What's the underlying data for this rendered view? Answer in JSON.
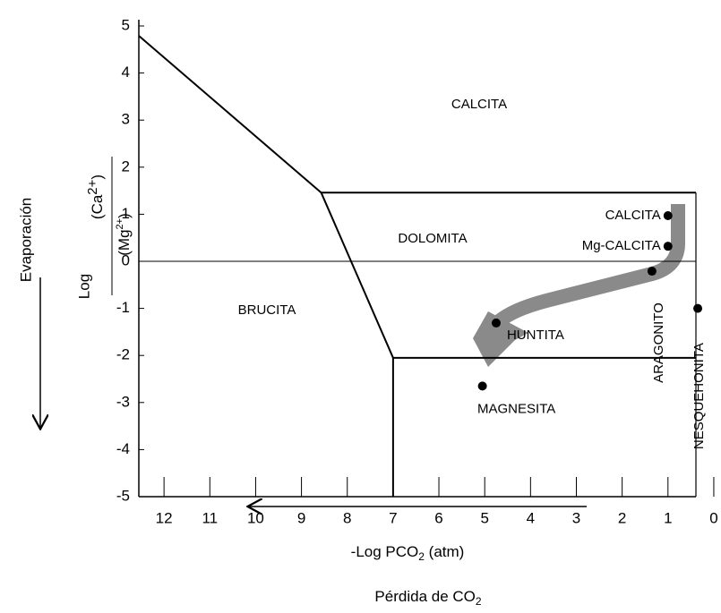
{
  "chart_data": {
    "type": "phase-diagram",
    "xlabel": {
      "main": "-Log PCO",
      "sub": "2",
      "rest": " (atm)"
    },
    "xnote": {
      "main": "Pérdida de CO",
      "sub": "2"
    },
    "ynote": "Evaporación",
    "ylabel": {
      "log": "Log",
      "num": {
        "open": "(Ca",
        "sup": "2+",
        "close": ")"
      },
      "den": {
        "open": "(Mg",
        "sup": "2+",
        "close": ")"
      }
    },
    "xlim": [
      12.55,
      0.39
    ],
    "ylim": [
      -5,
      5
    ],
    "xticks": [
      12,
      11,
      10,
      9,
      8,
      7,
      6,
      5,
      4,
      3,
      2,
      1,
      0
    ],
    "yticks": [
      5,
      4,
      3,
      2,
      1,
      0,
      -1,
      -2,
      -3,
      -4,
      -5
    ],
    "boundaries": [
      {
        "x": [
          12.55,
          8.57,
          0.39
        ],
        "y": [
          4.79,
          1.46,
          1.46
        ],
        "style": "thick"
      },
      {
        "x": [
          8.57,
          7.0,
          0.39
        ],
        "y": [
          1.46,
          -2.05,
          -2.05
        ],
        "style": "thick"
      },
      {
        "x": [
          7.0,
          7.0
        ],
        "y": [
          -2.05,
          -5
        ],
        "style": "thick"
      },
      {
        "x": [
          12.55,
          0.39
        ],
        "y": [
          0,
          0
        ],
        "style": "thin"
      }
    ],
    "regions": [
      "CALCITA",
      "DOLOMITA",
      "BRUCITA"
    ],
    "points": [
      {
        "label": "CALCITA",
        "x": 1.0,
        "y": 0.97
      },
      {
        "label": "Mg-CALCITA",
        "x": 1.0,
        "y": 0.32
      },
      {
        "label": "ARAGONITO",
        "x": 1.35,
        "y": -0.21
      },
      {
        "label": "HUNTITA",
        "x": 4.75,
        "y": -1.31
      },
      {
        "label": "MAGNESITA",
        "x": 5.05,
        "y": -2.65
      },
      {
        "label": "NESQUEHONITA",
        "x": 0.35,
        "y": -1.0
      }
    ]
  }
}
